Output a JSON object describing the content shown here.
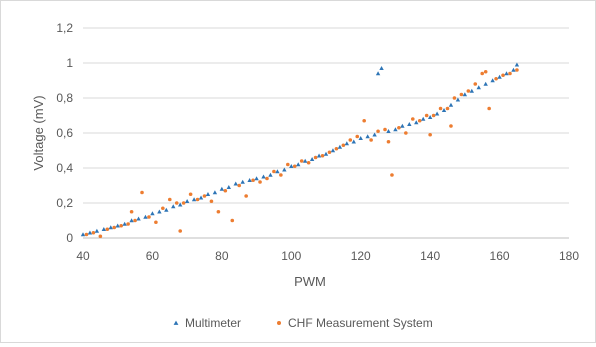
{
  "chart_data": {
    "type": "scatter",
    "xlabel": "PWM",
    "ylabel": "Voltage (mV)",
    "xlim": [
      40,
      180
    ],
    "ylim": [
      0,
      1.2
    ],
    "x_ticks": [
      40,
      60,
      80,
      100,
      120,
      140,
      160,
      180
    ],
    "x_tick_labels": [
      "40",
      "60",
      "80",
      "100",
      "120",
      "140",
      "160",
      "180"
    ],
    "y_ticks": [
      0,
      0.2,
      0.4,
      0.6,
      0.8,
      1.0,
      1.2
    ],
    "y_tick_labels": [
      "0",
      "0,2",
      "0,4",
      "0,6",
      "0,8",
      "1",
      "1,2"
    ],
    "grid": "horizontal",
    "legend_position": "bottom",
    "series": [
      {
        "name": "Multimeter",
        "marker": "triangle",
        "color": "#2E75B6",
        "points": [
          [
            40,
            0.02
          ],
          [
            42,
            0.03
          ],
          [
            44,
            0.04
          ],
          [
            46,
            0.05
          ],
          [
            48,
            0.06
          ],
          [
            50,
            0.07
          ],
          [
            52,
            0.08
          ],
          [
            54,
            0.1
          ],
          [
            56,
            0.11
          ],
          [
            58,
            0.12
          ],
          [
            60,
            0.14
          ],
          [
            62,
            0.15
          ],
          [
            64,
            0.16
          ],
          [
            66,
            0.18
          ],
          [
            68,
            0.19
          ],
          [
            70,
            0.21
          ],
          [
            72,
            0.22
          ],
          [
            74,
            0.23
          ],
          [
            76,
            0.25
          ],
          [
            78,
            0.26
          ],
          [
            80,
            0.28
          ],
          [
            82,
            0.29
          ],
          [
            84,
            0.31
          ],
          [
            86,
            0.32
          ],
          [
            88,
            0.33
          ],
          [
            90,
            0.34
          ],
          [
            92,
            0.35
          ],
          [
            94,
            0.36
          ],
          [
            96,
            0.38
          ],
          [
            98,
            0.39
          ],
          [
            100,
            0.41
          ],
          [
            102,
            0.42
          ],
          [
            104,
            0.44
          ],
          [
            106,
            0.45
          ],
          [
            108,
            0.47
          ],
          [
            110,
            0.48
          ],
          [
            112,
            0.5
          ],
          [
            114,
            0.52
          ],
          [
            116,
            0.54
          ],
          [
            118,
            0.55
          ],
          [
            120,
            0.57
          ],
          [
            122,
            0.58
          ],
          [
            124,
            0.59
          ],
          [
            125,
            0.94
          ],
          [
            126,
            0.97
          ],
          [
            128,
            0.61
          ],
          [
            130,
            0.62
          ],
          [
            132,
            0.64
          ],
          [
            134,
            0.65
          ],
          [
            136,
            0.66
          ],
          [
            138,
            0.68
          ],
          [
            140,
            0.69
          ],
          [
            142,
            0.71
          ],
          [
            144,
            0.73
          ],
          [
            146,
            0.76
          ],
          [
            148,
            0.79
          ],
          [
            150,
            0.82
          ],
          [
            152,
            0.84
          ],
          [
            154,
            0.86
          ],
          [
            156,
            0.88
          ],
          [
            158,
            0.9
          ],
          [
            160,
            0.92
          ],
          [
            162,
            0.94
          ],
          [
            164,
            0.96
          ],
          [
            165,
            0.99
          ]
        ]
      },
      {
        "name": "CHF Measurement System",
        "marker": "circle",
        "color": "#ED7D31",
        "points": [
          [
            41,
            0.02
          ],
          [
            43,
            0.03
          ],
          [
            45,
            0.01
          ],
          [
            47,
            0.05
          ],
          [
            49,
            0.06
          ],
          [
            51,
            0.07
          ],
          [
            53,
            0.08
          ],
          [
            54,
            0.15
          ],
          [
            55,
            0.1
          ],
          [
            57,
            0.26
          ],
          [
            59,
            0.12
          ],
          [
            61,
            0.09
          ],
          [
            63,
            0.17
          ],
          [
            65,
            0.22
          ],
          [
            67,
            0.2
          ],
          [
            68,
            0.04
          ],
          [
            69,
            0.2
          ],
          [
            71,
            0.25
          ],
          [
            73,
            0.22
          ],
          [
            75,
            0.24
          ],
          [
            77,
            0.21
          ],
          [
            79,
            0.15
          ],
          [
            81,
            0.27
          ],
          [
            83,
            0.1
          ],
          [
            85,
            0.3
          ],
          [
            87,
            0.24
          ],
          [
            89,
            0.33
          ],
          [
            91,
            0.32
          ],
          [
            93,
            0.34
          ],
          [
            95,
            0.38
          ],
          [
            97,
            0.36
          ],
          [
            99,
            0.42
          ],
          [
            101,
            0.41
          ],
          [
            103,
            0.44
          ],
          [
            105,
            0.43
          ],
          [
            107,
            0.46
          ],
          [
            109,
            0.47
          ],
          [
            111,
            0.49
          ],
          [
            113,
            0.51
          ],
          [
            115,
            0.53
          ],
          [
            117,
            0.56
          ],
          [
            119,
            0.58
          ],
          [
            121,
            0.67
          ],
          [
            123,
            0.56
          ],
          [
            125,
            0.61
          ],
          [
            127,
            0.62
          ],
          [
            128,
            0.55
          ],
          [
            129,
            0.36
          ],
          [
            131,
            0.63
          ],
          [
            133,
            0.6
          ],
          [
            135,
            0.68
          ],
          [
            137,
            0.67
          ],
          [
            139,
            0.7
          ],
          [
            140,
            0.59
          ],
          [
            141,
            0.7
          ],
          [
            143,
            0.74
          ],
          [
            145,
            0.74
          ],
          [
            146,
            0.64
          ],
          [
            147,
            0.8
          ],
          [
            149,
            0.82
          ],
          [
            151,
            0.84
          ],
          [
            153,
            0.88
          ],
          [
            155,
            0.94
          ],
          [
            156,
            0.95
          ],
          [
            157,
            0.74
          ],
          [
            159,
            0.91
          ],
          [
            161,
            0.93
          ],
          [
            163,
            0.94
          ],
          [
            165,
            0.96
          ]
        ]
      }
    ]
  }
}
